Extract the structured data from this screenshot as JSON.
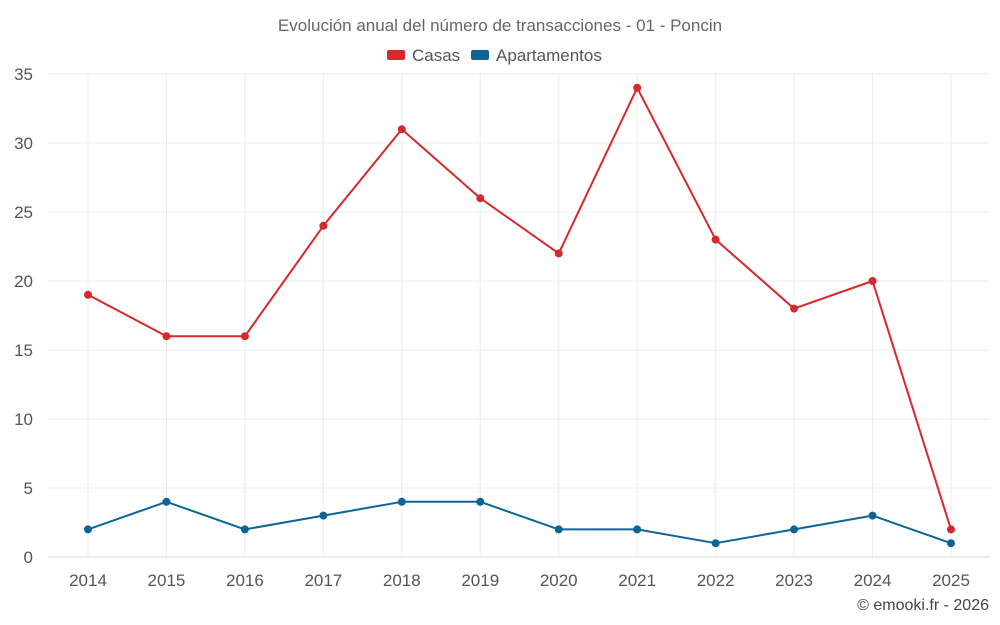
{
  "chart_data": {
    "type": "line",
    "title": "Evolución anual del número de transacciones - 01 - Poncin",
    "x": [
      "2014",
      "2015",
      "2016",
      "2017",
      "2018",
      "2019",
      "2020",
      "2021",
      "2022",
      "2023",
      "2024",
      "2025"
    ],
    "ylim": [
      0,
      35
    ],
    "yticks": [
      0,
      5,
      10,
      15,
      20,
      25,
      30,
      35
    ],
    "grid": true,
    "legend_position": "top-center",
    "series": [
      {
        "name": "Casas",
        "color": "#d7282b",
        "values": [
          19,
          16,
          16,
          24,
          31,
          26,
          22,
          34,
          23,
          18,
          20,
          2
        ]
      },
      {
        "name": "Apartamentos",
        "color": "#0d6597",
        "values": [
          2,
          4,
          2,
          3,
          4,
          4,
          2,
          2,
          1,
          2,
          3,
          1
        ]
      }
    ],
    "credit": "© emooki.fr - 2026"
  }
}
